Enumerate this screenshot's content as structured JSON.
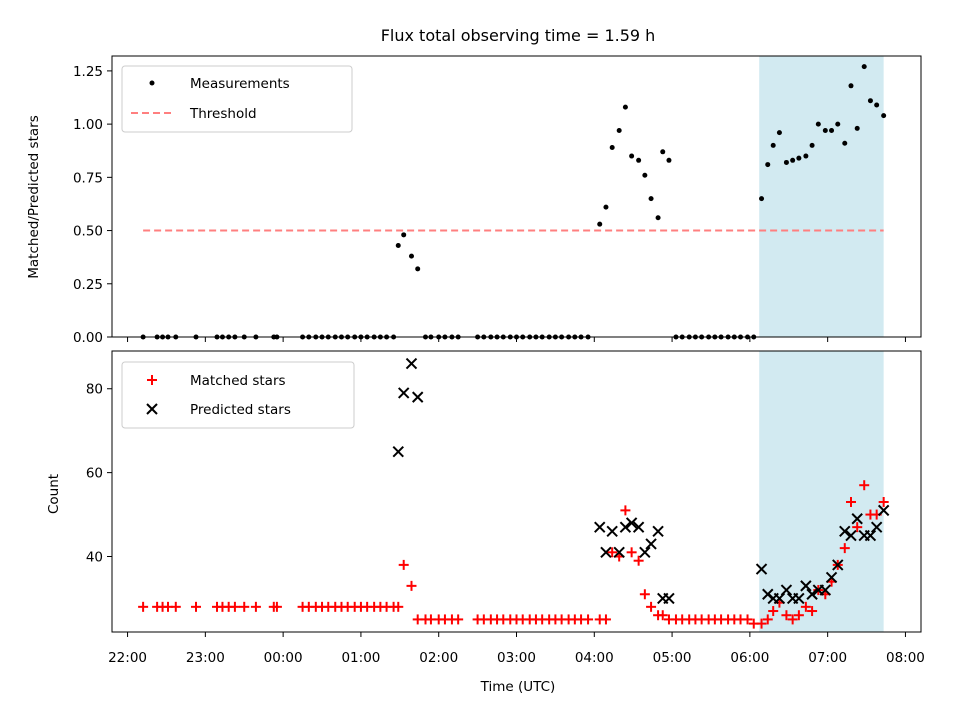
{
  "chart_data": {
    "title": "Flux total observing time = 1.59 h",
    "xlabel": "Time (UTC)",
    "x_tick_labels": [
      "22:00",
      "23:00",
      "00:00",
      "01:00",
      "02:00",
      "03:00",
      "04:00",
      "05:00",
      "06:00",
      "07:00",
      "08:00"
    ],
    "x_range_hours": [
      -2.2,
      8.2
    ],
    "x_unit": "hours relative to 00:00 UTC",
    "highlight_band": {
      "start": 6.12,
      "end": 7.72,
      "color": "#add8e6"
    },
    "panels": [
      {
        "type": "scatter",
        "ylabel": "Matched/Predicted stars",
        "ylim": [
          0,
          1.32
        ],
        "yticks": [
          0.0,
          0.25,
          0.5,
          0.75,
          1.0,
          1.25
        ],
        "ytick_labels": [
          "0.00",
          "0.25",
          "0.50",
          "0.75",
          "1.00",
          "1.25"
        ],
        "legend_position": "top-left",
        "series": [
          {
            "name": "Measurements",
            "marker": "dot",
            "color": "#000000",
            "points": [
              [
                -1.8,
                0
              ],
              [
                -1.62,
                0
              ],
              [
                -1.55,
                0
              ],
              [
                -1.48,
                0
              ],
              [
                -1.38,
                0
              ],
              [
                -1.12,
                0
              ],
              [
                -0.85,
                0
              ],
              [
                -0.78,
                0
              ],
              [
                -0.7,
                0
              ],
              [
                -0.62,
                0
              ],
              [
                -0.5,
                0
              ],
              [
                -0.35,
                0
              ],
              [
                -0.12,
                0
              ],
              [
                -0.08,
                0
              ],
              [
                0.25,
                0
              ],
              [
                0.33,
                0
              ],
              [
                0.42,
                0
              ],
              [
                0.5,
                0
              ],
              [
                0.58,
                0
              ],
              [
                0.67,
                0
              ],
              [
                0.75,
                0
              ],
              [
                0.83,
                0
              ],
              [
                0.92,
                0
              ],
              [
                1.0,
                0
              ],
              [
                1.08,
                0
              ],
              [
                1.17,
                0
              ],
              [
                1.25,
                0
              ],
              [
                1.33,
                0
              ],
              [
                1.42,
                0
              ],
              [
                1.48,
                0.43
              ],
              [
                1.55,
                0.48
              ],
              [
                1.65,
                0.38
              ],
              [
                1.73,
                0.32
              ],
              [
                1.83,
                0
              ],
              [
                1.9,
                0
              ],
              [
                2.0,
                0
              ],
              [
                2.08,
                0
              ],
              [
                2.17,
                0
              ],
              [
                2.25,
                0
              ],
              [
                2.5,
                0
              ],
              [
                2.58,
                0
              ],
              [
                2.67,
                0
              ],
              [
                2.75,
                0
              ],
              [
                2.83,
                0
              ],
              [
                2.92,
                0
              ],
              [
                3.0,
                0
              ],
              [
                3.08,
                0
              ],
              [
                3.17,
                0
              ],
              [
                3.25,
                0
              ],
              [
                3.33,
                0
              ],
              [
                3.42,
                0
              ],
              [
                3.5,
                0
              ],
              [
                3.58,
                0
              ],
              [
                3.67,
                0
              ],
              [
                3.75,
                0
              ],
              [
                3.83,
                0
              ],
              [
                3.92,
                0
              ],
              [
                4.07,
                0.53
              ],
              [
                4.15,
                0.61
              ],
              [
                4.23,
                0.89
              ],
              [
                4.32,
                0.97
              ],
              [
                4.4,
                1.08
              ],
              [
                4.48,
                0.85
              ],
              [
                4.57,
                0.83
              ],
              [
                4.65,
                0.76
              ],
              [
                4.73,
                0.65
              ],
              [
                4.82,
                0.56
              ],
              [
                4.88,
                0.87
              ],
              [
                4.96,
                0.83
              ],
              [
                5.05,
                0
              ],
              [
                5.13,
                0
              ],
              [
                5.22,
                0
              ],
              [
                5.3,
                0
              ],
              [
                5.38,
                0
              ],
              [
                5.47,
                0
              ],
              [
                5.55,
                0
              ],
              [
                5.63,
                0
              ],
              [
                5.72,
                0
              ],
              [
                5.8,
                0
              ],
              [
                5.88,
                0
              ],
              [
                5.97,
                0
              ],
              [
                6.05,
                0
              ],
              [
                6.15,
                0.65
              ],
              [
                6.23,
                0.81
              ],
              [
                6.3,
                0.9
              ],
              [
                6.38,
                0.96
              ],
              [
                6.47,
                0.82
              ],
              [
                6.55,
                0.83
              ],
              [
                6.63,
                0.84
              ],
              [
                6.72,
                0.85
              ],
              [
                6.8,
                0.9
              ],
              [
                6.88,
                1.0
              ],
              [
                6.97,
                0.97
              ],
              [
                7.05,
                0.97
              ],
              [
                7.13,
                1.0
              ],
              [
                7.22,
                0.91
              ],
              [
                7.3,
                1.18
              ],
              [
                7.38,
                0.98
              ],
              [
                7.47,
                1.27
              ],
              [
                7.55,
                1.11
              ],
              [
                7.63,
                1.09
              ],
              [
                7.72,
                1.04
              ]
            ]
          },
          {
            "name": "Threshold",
            "marker": "dashed-line",
            "color": "#ff7f7f",
            "points": [
              [
                -1.8,
                0.5
              ],
              [
                7.72,
                0.5
              ]
            ]
          }
        ]
      },
      {
        "type": "scatter",
        "ylabel": "Count",
        "ylim": [
          22,
          89
        ],
        "yticks": [
          40,
          60,
          80
        ],
        "ytick_labels": [
          "40",
          "60",
          "80"
        ],
        "legend_position": "top-left",
        "series": [
          {
            "name": "Matched stars",
            "marker": "plus",
            "color": "#ff0000",
            "points": [
              [
                -1.8,
                28
              ],
              [
                -1.62,
                28
              ],
              [
                -1.55,
                28
              ],
              [
                -1.48,
                28
              ],
              [
                -1.38,
                28
              ],
              [
                -1.12,
                28
              ],
              [
                -0.85,
                28
              ],
              [
                -0.78,
                28
              ],
              [
                -0.7,
                28
              ],
              [
                -0.62,
                28
              ],
              [
                -0.5,
                28
              ],
              [
                -0.35,
                28
              ],
              [
                -0.12,
                28
              ],
              [
                -0.08,
                28
              ],
              [
                0.25,
                28
              ],
              [
                0.33,
                28
              ],
              [
                0.42,
                28
              ],
              [
                0.5,
                28
              ],
              [
                0.58,
                28
              ],
              [
                0.67,
                28
              ],
              [
                0.75,
                28
              ],
              [
                0.83,
                28
              ],
              [
                0.92,
                28
              ],
              [
                1.0,
                28
              ],
              [
                1.08,
                28
              ],
              [
                1.17,
                28
              ],
              [
                1.25,
                28
              ],
              [
                1.33,
                28
              ],
              [
                1.42,
                28
              ],
              [
                1.48,
                28
              ],
              [
                1.55,
                38
              ],
              [
                1.65,
                33
              ],
              [
                1.73,
                25
              ],
              [
                1.83,
                25
              ],
              [
                1.9,
                25
              ],
              [
                2.0,
                25
              ],
              [
                2.08,
                25
              ],
              [
                2.17,
                25
              ],
              [
                2.25,
                25
              ],
              [
                2.5,
                25
              ],
              [
                2.58,
                25
              ],
              [
                2.67,
                25
              ],
              [
                2.75,
                25
              ],
              [
                2.83,
                25
              ],
              [
                2.92,
                25
              ],
              [
                3.0,
                25
              ],
              [
                3.08,
                25
              ],
              [
                3.17,
                25
              ],
              [
                3.25,
                25
              ],
              [
                3.33,
                25
              ],
              [
                3.42,
                25
              ],
              [
                3.5,
                25
              ],
              [
                3.58,
                25
              ],
              [
                3.67,
                25
              ],
              [
                3.75,
                25
              ],
              [
                3.83,
                25
              ],
              [
                3.92,
                25
              ],
              [
                4.07,
                25
              ],
              [
                4.15,
                25
              ],
              [
                4.23,
                41
              ],
              [
                4.32,
                40
              ],
              [
                4.4,
                51
              ],
              [
                4.48,
                41
              ],
              [
                4.57,
                39
              ],
              [
                4.65,
                31
              ],
              [
                4.73,
                28
              ],
              [
                4.82,
                26
              ],
              [
                4.88,
                26
              ],
              [
                4.96,
                25
              ],
              [
                5.05,
                25
              ],
              [
                5.13,
                25
              ],
              [
                5.22,
                25
              ],
              [
                5.3,
                25
              ],
              [
                5.38,
                25
              ],
              [
                5.47,
                25
              ],
              [
                5.55,
                25
              ],
              [
                5.63,
                25
              ],
              [
                5.72,
                25
              ],
              [
                5.8,
                25
              ],
              [
                5.88,
                25
              ],
              [
                5.97,
                25
              ],
              [
                6.05,
                24
              ],
              [
                6.15,
                24
              ],
              [
                6.23,
                25
              ],
              [
                6.3,
                27
              ],
              [
                6.38,
                29
              ],
              [
                6.47,
                26
              ],
              [
                6.55,
                25
              ],
              [
                6.63,
                26
              ],
              [
                6.72,
                28
              ],
              [
                6.8,
                27
              ],
              [
                6.88,
                32
              ],
              [
                6.97,
                31
              ],
              [
                7.05,
                34
              ],
              [
                7.13,
                38
              ],
              [
                7.22,
                42
              ],
              [
                7.3,
                53
              ],
              [
                7.38,
                47
              ],
              [
                7.47,
                57
              ],
              [
                7.55,
                50
              ],
              [
                7.63,
                50
              ],
              [
                7.72,
                53
              ]
            ]
          },
          {
            "name": "Predicted stars",
            "marker": "x",
            "color": "#000000",
            "points": [
              [
                1.48,
                65
              ],
              [
                1.55,
                79
              ],
              [
                1.65,
                86
              ],
              [
                1.73,
                78
              ],
              [
                4.07,
                47
              ],
              [
                4.15,
                41
              ],
              [
                4.23,
                46
              ],
              [
                4.32,
                41
              ],
              [
                4.4,
                47
              ],
              [
                4.48,
                48
              ],
              [
                4.57,
                47
              ],
              [
                4.65,
                41
              ],
              [
                4.73,
                43
              ],
              [
                4.82,
                46
              ],
              [
                4.88,
                30
              ],
              [
                4.96,
                30
              ],
              [
                6.15,
                37
              ],
              [
                6.23,
                31
              ],
              [
                6.3,
                30
              ],
              [
                6.38,
                30
              ],
              [
                6.47,
                32
              ],
              [
                6.55,
                30
              ],
              [
                6.63,
                30
              ],
              [
                6.72,
                33
              ],
              [
                6.8,
                31
              ],
              [
                6.88,
                32
              ],
              [
                6.97,
                32
              ],
              [
                7.05,
                35
              ],
              [
                7.13,
                38
              ],
              [
                7.22,
                46
              ],
              [
                7.3,
                45
              ],
              [
                7.38,
                49
              ],
              [
                7.47,
                45
              ],
              [
                7.55,
                45
              ],
              [
                7.63,
                47
              ],
              [
                7.72,
                51
              ]
            ]
          }
        ]
      }
    ]
  }
}
